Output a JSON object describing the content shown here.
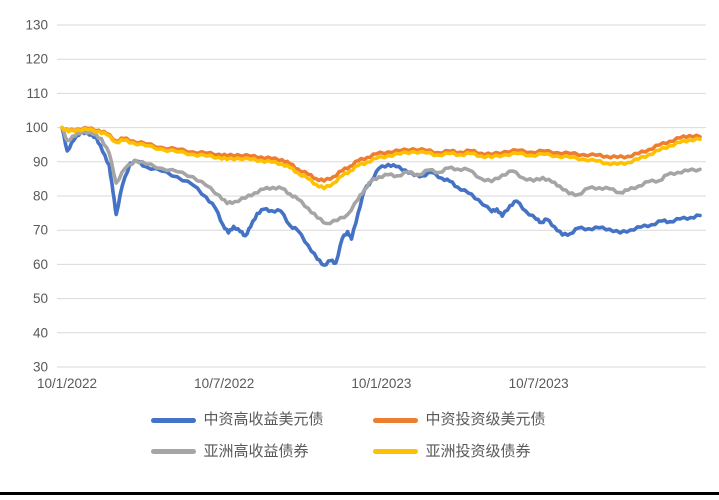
{
  "page": {
    "background": "#FFFFFF",
    "divider_color": "#000000"
  },
  "chart_data": {
    "type": "line",
    "title": "",
    "x_tick_labels": [
      "10/1/2022",
      "10/7/2022",
      "10/1/2023",
      "10/7/2023"
    ],
    "x_tick_months": [
      0,
      6,
      12,
      18
    ],
    "x_range_months": [
      0,
      24.35
    ],
    "y_ticks": [
      130,
      120,
      110,
      100,
      90,
      80,
      70,
      60,
      50,
      40,
      30
    ],
    "ylim": [
      30,
      130
    ],
    "grid": "horizontal-only",
    "gridline_color": "#D9D9D9",
    "axis_label_color": "#595959",
    "legend_position": "bottom-two-rows",
    "series": [
      {
        "name": "中资高收益美元债",
        "color": "#4472C4",
        "points": [
          [
            0,
            100
          ],
          [
            0.2,
            93.2
          ],
          [
            0.45,
            96.3
          ],
          [
            0.75,
            99
          ],
          [
            1.05,
            97.8
          ],
          [
            1.3,
            97.3
          ],
          [
            1.55,
            93
          ],
          [
            1.8,
            89
          ],
          [
            1.95,
            81
          ],
          [
            2.07,
            74.6
          ],
          [
            2.3,
            83
          ],
          [
            2.6,
            89.6
          ],
          [
            2.85,
            90.2
          ],
          [
            3.2,
            88.6
          ],
          [
            3.8,
            87.3
          ],
          [
            4.4,
            85.6
          ],
          [
            5,
            83.2
          ],
          [
            5.5,
            79.7
          ],
          [
            5.85,
            76.5
          ],
          [
            6.15,
            71.5
          ],
          [
            6.35,
            69.2
          ],
          [
            6.55,
            71.1
          ],
          [
            6.8,
            69.6
          ],
          [
            7,
            68.4
          ],
          [
            7.2,
            71
          ],
          [
            7.45,
            74.9
          ],
          [
            7.7,
            76.1
          ],
          [
            8,
            75.7
          ],
          [
            8.35,
            75.6
          ],
          [
            8.7,
            71.4
          ],
          [
            9,
            69.9
          ],
          [
            9.4,
            65.5
          ],
          [
            9.75,
            61.5
          ],
          [
            10,
            59.8
          ],
          [
            10.25,
            61.1
          ],
          [
            10.45,
            60.4
          ],
          [
            10.7,
            67.6
          ],
          [
            10.9,
            69.6
          ],
          [
            11.05,
            67.4
          ],
          [
            11.3,
            75
          ],
          [
            11.55,
            81.8
          ],
          [
            11.8,
            84.4
          ],
          [
            12.1,
            88.1
          ],
          [
            12.45,
            89.2
          ],
          [
            12.75,
            88.6
          ],
          [
            13.1,
            87.6
          ],
          [
            13.45,
            86
          ],
          [
            13.75,
            85.9
          ],
          [
            14.1,
            86.9
          ],
          [
            14.5,
            85.2
          ],
          [
            14.8,
            84.3
          ],
          [
            15.1,
            82.6
          ],
          [
            15.5,
            80.9
          ],
          [
            15.9,
            78.9
          ],
          [
            16.4,
            75.4
          ],
          [
            16.6,
            76.2
          ],
          [
            16.8,
            74.1
          ],
          [
            17.1,
            77.2
          ],
          [
            17.35,
            78.5
          ],
          [
            17.7,
            75.6
          ],
          [
            18.1,
            73.2
          ],
          [
            18.3,
            72.3
          ],
          [
            18.5,
            73.2
          ],
          [
            18.8,
            71
          ],
          [
            19.1,
            68.6
          ],
          [
            19.4,
            69
          ],
          [
            19.7,
            70.6
          ],
          [
            20.1,
            70.4
          ],
          [
            20.5,
            70.7
          ],
          [
            20.9,
            70.3
          ],
          [
            21.3,
            69.2
          ],
          [
            21.7,
            70.1
          ],
          [
            22.1,
            70.9
          ],
          [
            22.5,
            71.6
          ],
          [
            22.9,
            72.7
          ],
          [
            23.2,
            72.5
          ],
          [
            23.6,
            73.3
          ],
          [
            24,
            73.7
          ],
          [
            24.35,
            74.3
          ]
        ]
      },
      {
        "name": "中资投资级美元债",
        "color": "#ED7D31",
        "points": [
          [
            0,
            100
          ],
          [
            0.25,
            99
          ],
          [
            0.6,
            99.6
          ],
          [
            1,
            99.7
          ],
          [
            1.4,
            99.2
          ],
          [
            1.7,
            98.3
          ],
          [
            2.07,
            96.1
          ],
          [
            2.35,
            96.8
          ],
          [
            2.7,
            96.1
          ],
          [
            3.2,
            95.2
          ],
          [
            3.8,
            94.2
          ],
          [
            4.4,
            93.6
          ],
          [
            5,
            92.9
          ],
          [
            5.5,
            92.5
          ],
          [
            6,
            92.2
          ],
          [
            6.3,
            91.7
          ],
          [
            6.7,
            92.1
          ],
          [
            7.2,
            91.6
          ],
          [
            7.6,
            91.4
          ],
          [
            8,
            90.9
          ],
          [
            8.4,
            90.6
          ],
          [
            8.7,
            89.4
          ],
          [
            9,
            87.9
          ],
          [
            9.4,
            86.3
          ],
          [
            9.7,
            85.1
          ],
          [
            10,
            84.4
          ],
          [
            10.35,
            85.6
          ],
          [
            10.7,
            87.4
          ],
          [
            11,
            88.7
          ],
          [
            11.3,
            90.3
          ],
          [
            11.65,
            91.3
          ],
          [
            12,
            92.3
          ],
          [
            12.45,
            92.9
          ],
          [
            12.9,
            93.2
          ],
          [
            13.4,
            93.8
          ],
          [
            13.9,
            93.3
          ],
          [
            14.35,
            92.7
          ],
          [
            14.8,
            93.1
          ],
          [
            15.2,
            92.8
          ],
          [
            15.6,
            93.2
          ],
          [
            16,
            92.5
          ],
          [
            16.4,
            92.1
          ],
          [
            16.9,
            93
          ],
          [
            17.4,
            93.3
          ],
          [
            17.9,
            92.8
          ],
          [
            18.4,
            93.1
          ],
          [
            18.9,
            92.7
          ],
          [
            19.4,
            92.4
          ],
          [
            19.9,
            92.1
          ],
          [
            20.4,
            91.9
          ],
          [
            20.8,
            91.6
          ],
          [
            21.2,
            91.3
          ],
          [
            21.6,
            91.6
          ],
          [
            22,
            92.4
          ],
          [
            22.4,
            93.6
          ],
          [
            22.8,
            94.9
          ],
          [
            23.2,
            96
          ],
          [
            23.6,
            97
          ],
          [
            23.95,
            97.7
          ],
          [
            24.35,
            97.3
          ]
        ]
      },
      {
        "name": "亚洲高收益债券",
        "color": "#A5A5A5",
        "points": [
          [
            0,
            100
          ],
          [
            0.2,
            96.2
          ],
          [
            0.5,
            97.6
          ],
          [
            0.8,
            99
          ],
          [
            1.2,
            98
          ],
          [
            1.5,
            96.8
          ],
          [
            1.8,
            92.5
          ],
          [
            2.07,
            83.8
          ],
          [
            2.4,
            88
          ],
          [
            2.8,
            90.4
          ],
          [
            3.2,
            89.4
          ],
          [
            3.8,
            88.1
          ],
          [
            4.4,
            87.1
          ],
          [
            5,
            85.6
          ],
          [
            5.5,
            83.1
          ],
          [
            6,
            80.2
          ],
          [
            6.3,
            77.8
          ],
          [
            6.6,
            78.4
          ],
          [
            7,
            79.4
          ],
          [
            7.35,
            80.9
          ],
          [
            7.7,
            82
          ],
          [
            8.05,
            82.5
          ],
          [
            8.4,
            82.2
          ],
          [
            8.7,
            80.6
          ],
          [
            9,
            79.1
          ],
          [
            9.4,
            76.4
          ],
          [
            9.75,
            73.6
          ],
          [
            10.1,
            72
          ],
          [
            10.5,
            72.8
          ],
          [
            10.9,
            74.6
          ],
          [
            11.3,
            79
          ],
          [
            11.55,
            82
          ],
          [
            11.8,
            84.3
          ],
          [
            12.1,
            85.6
          ],
          [
            12.45,
            86.2
          ],
          [
            12.8,
            85.9
          ],
          [
            13.2,
            87
          ],
          [
            13.6,
            86.2
          ],
          [
            14,
            87.6
          ],
          [
            14.4,
            86.9
          ],
          [
            14.75,
            88.2
          ],
          [
            15.1,
            87.9
          ],
          [
            15.5,
            87.7
          ],
          [
            16,
            85.1
          ],
          [
            16.4,
            84.2
          ],
          [
            16.8,
            86.1
          ],
          [
            17.2,
            87.3
          ],
          [
            17.6,
            85.3
          ],
          [
            18,
            84.4
          ],
          [
            18.35,
            85.4
          ],
          [
            18.7,
            84.1
          ],
          [
            19,
            82.9
          ],
          [
            19.35,
            80.7
          ],
          [
            19.7,
            80.4
          ],
          [
            20.1,
            82.3
          ],
          [
            20.5,
            82.4
          ],
          [
            20.9,
            82.1
          ],
          [
            21.3,
            81
          ],
          [
            21.6,
            81.7
          ],
          [
            22,
            82.9
          ],
          [
            22.4,
            84.2
          ],
          [
            22.8,
            84.5
          ],
          [
            23.1,
            86.2
          ],
          [
            23.5,
            86.9
          ],
          [
            23.9,
            87.4
          ],
          [
            24.35,
            87.8
          ]
        ]
      },
      {
        "name": "亚洲投资级债券",
        "color": "#FFC000",
        "points": [
          [
            0,
            100
          ],
          [
            0.25,
            98.8
          ],
          [
            0.6,
            99.4
          ],
          [
            1,
            99.4
          ],
          [
            1.4,
            98.9
          ],
          [
            1.7,
            98
          ],
          [
            2.07,
            95.7
          ],
          [
            2.35,
            96.3
          ],
          [
            2.7,
            95.6
          ],
          [
            3.2,
            94.7
          ],
          [
            3.8,
            93.7
          ],
          [
            4.4,
            92.9
          ],
          [
            5,
            92.2
          ],
          [
            5.5,
            91.7
          ],
          [
            6,
            91.3
          ],
          [
            6.3,
            90.7
          ],
          [
            6.7,
            91.1
          ],
          [
            7.2,
            90.7
          ],
          [
            7.6,
            90.4
          ],
          [
            8,
            89.9
          ],
          [
            8.4,
            89.4
          ],
          [
            8.7,
            88.3
          ],
          [
            9,
            86.8
          ],
          [
            9.4,
            85
          ],
          [
            9.7,
            83.4
          ],
          [
            10,
            82.2
          ],
          [
            10.35,
            83.7
          ],
          [
            10.7,
            85.9
          ],
          [
            11,
            87.4
          ],
          [
            11.3,
            88.9
          ],
          [
            11.65,
            89.9
          ],
          [
            12,
            91
          ],
          [
            12.45,
            91.8
          ],
          [
            12.9,
            92.3
          ],
          [
            13.4,
            93
          ],
          [
            13.9,
            92.6
          ],
          [
            14.35,
            92
          ],
          [
            14.8,
            92.4
          ],
          [
            15.2,
            92.1
          ],
          [
            15.6,
            92.4
          ],
          [
            16,
            91.7
          ],
          [
            16.4,
            91.3
          ],
          [
            16.9,
            92.1
          ],
          [
            17.4,
            92.4
          ],
          [
            17.9,
            91.9
          ],
          [
            18.4,
            92.2
          ],
          [
            18.9,
            91.7
          ],
          [
            19.4,
            91.3
          ],
          [
            19.9,
            90.8
          ],
          [
            20.4,
            90.2
          ],
          [
            20.8,
            89.6
          ],
          [
            21.2,
            89.3
          ],
          [
            21.6,
            89.8
          ],
          [
            22,
            90.8
          ],
          [
            22.4,
            92.1
          ],
          [
            22.8,
            93.4
          ],
          [
            23.2,
            94.7
          ],
          [
            23.6,
            95.7
          ],
          [
            23.95,
            96.4
          ],
          [
            24.35,
            96.6
          ]
        ]
      }
    ]
  }
}
